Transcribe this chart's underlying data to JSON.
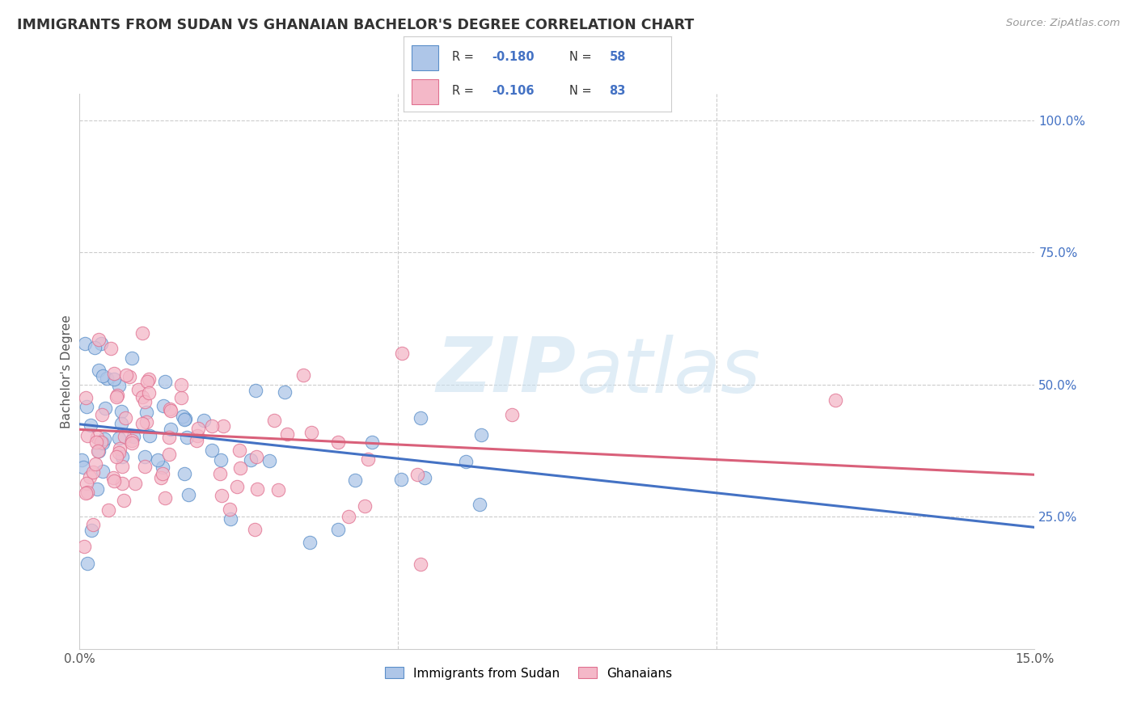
{
  "title": "IMMIGRANTS FROM SUDAN VS GHANAIAN BACHELOR'S DEGREE CORRELATION CHART",
  "source": "Source: ZipAtlas.com",
  "ylabel": "Bachelor's Degree",
  "watermark_zip": "ZIP",
  "watermark_atlas": "atlas",
  "xlim": [
    0.0,
    0.15
  ],
  "ylim": [
    0.0,
    1.05
  ],
  "legend_label_blue": "Immigrants from Sudan",
  "legend_label_pink": "Ghanaians",
  "blue_face_color": "#aec6e8",
  "pink_face_color": "#f4b8c8",
  "blue_edge_color": "#5b8fc9",
  "pink_edge_color": "#e07090",
  "blue_line_color": "#4472c4",
  "pink_line_color": "#d9607a",
  "right_tick_color": "#4472c4",
  "legend_text_color": "#4472c4",
  "legend_r_label_color": "#333333",
  "grid_color": "#cccccc",
  "title_color": "#333333",
  "source_color": "#999999",
  "ylabel_color": "#555555",
  "blue_intercept": 0.425,
  "blue_slope": -1.3,
  "pink_intercept": 0.415,
  "pink_slope": -0.57
}
